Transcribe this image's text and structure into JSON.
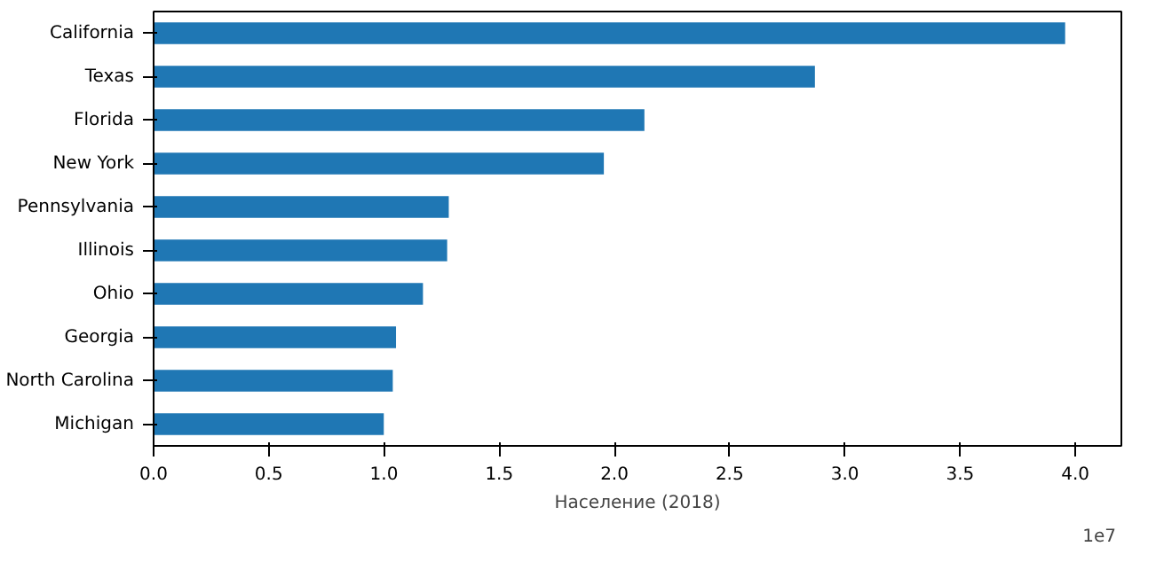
{
  "chart_data": {
    "type": "bar",
    "orientation": "horizontal",
    "xlabel": "Население (2018)",
    "categories": [
      "California",
      "Texas",
      "Florida",
      "New York",
      "Pennsylvania",
      "Illinois",
      "Ohio",
      "Georgia",
      "North Carolina",
      "Michigan"
    ],
    "values": [
      3.956,
      2.87,
      2.13,
      1.954,
      1.281,
      1.274,
      1.169,
      1.052,
      1.038,
      0.999
    ],
    "color": "#1f77b4",
    "xlim": [
      0,
      4.2
    ],
    "xticks": [
      {
        "value": 0,
        "label": "0.0"
      },
      0.5,
      {
        "value": 1,
        "label": "1.0"
      },
      1.5,
      {
        "value": 2,
        "label": "2.0"
      },
      2.5,
      {
        "value": 3,
        "label": "3.0"
      },
      3.5,
      {
        "value": 4,
        "label": "4.0"
      }
    ],
    "annotations": [
      "1e7"
    ],
    "grid": false
  }
}
